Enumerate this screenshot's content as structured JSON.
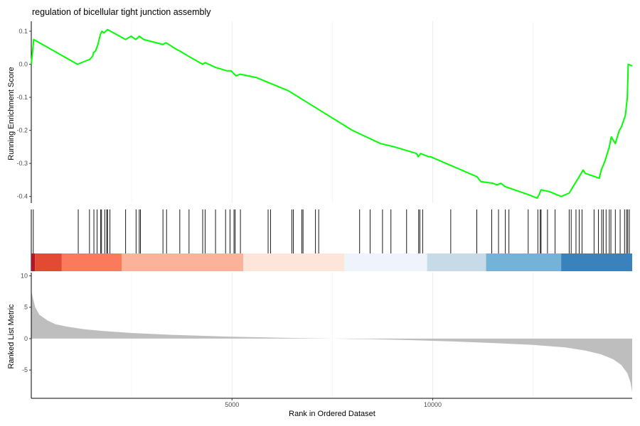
{
  "chart_data": {
    "type": "line",
    "title": "regulation of bicellular tight junction assembly",
    "xlabel": "Rank in Ordered Dataset",
    "xlim": [
      0,
      14970
    ],
    "x_ticks": [
      5000,
      10000
    ],
    "x_tick_labels": [
      "5000",
      "10000"
    ],
    "grid": true,
    "panels": [
      {
        "name": "running-enrichment",
        "ylabel": "Running Enrichment Score",
        "ylim": [
          -0.42,
          0.13
        ],
        "y_ticks": [
          0.1,
          0.0,
          -0.1,
          -0.2,
          -0.3,
          -0.4
        ],
        "y_tick_labels": [
          "0.1",
          "0.0",
          "-0.1",
          "-0.2",
          "-0.3",
          "-0.4"
        ],
        "series": [
          {
            "color": "#00ff00",
            "x": [
              0,
              60,
              1150,
              1460,
              1530,
              1550,
              1600,
              1660,
              1700,
              1720,
              1760,
              1810,
              1900,
              2350,
              2490,
              2600,
              2650,
              2690,
              2800,
              3280,
              3350,
              3400,
              3620,
              3700,
              3950,
              4270,
              4330,
              4600,
              4880,
              4980,
              5100,
              5200,
              5600,
              6400,
              7200,
              8000,
              8700,
              9050,
              9600,
              9640,
              9700,
              9900,
              9950,
              11100,
              11200,
              11500,
              11600,
              11700,
              11800,
              12400,
              12600,
              12650,
              12700,
              12900,
              13200,
              13400,
              13500,
              13650,
              13750,
              13800,
              14150,
              14200,
              14300,
              14350,
              14400,
              14450,
              14550,
              14650,
              14700,
              14800,
              14850,
              14870,
              14970
            ],
            "y": [
              0.0,
              0.075,
              0.0,
              0.015,
              0.025,
              0.035,
              0.04,
              0.06,
              0.08,
              0.09,
              0.1,
              0.095,
              0.105,
              0.075,
              0.085,
              0.075,
              0.08,
              0.085,
              0.075,
              0.06,
              0.065,
              0.062,
              0.045,
              0.04,
              0.022,
              0.0,
              0.005,
              -0.01,
              -0.02,
              -0.02,
              -0.035,
              -0.03,
              -0.04,
              -0.08,
              -0.14,
              -0.2,
              -0.24,
              -0.25,
              -0.27,
              -0.28,
              -0.27,
              -0.28,
              -0.28,
              -0.34,
              -0.355,
              -0.36,
              -0.365,
              -0.36,
              -0.37,
              -0.395,
              -0.405,
              -0.395,
              -0.38,
              -0.385,
              -0.4,
              -0.39,
              -0.37,
              -0.34,
              -0.32,
              -0.33,
              -0.345,
              -0.32,
              -0.29,
              -0.27,
              -0.25,
              -0.22,
              -0.24,
              -0.2,
              -0.19,
              -0.155,
              -0.1,
              0.0,
              -0.005
            ]
          }
        ]
      },
      {
        "name": "gene-hits",
        "hits": [
          50,
          1170,
          1450,
          1560,
          1640,
          1730,
          1750,
          1830,
          1880,
          1900,
          1960,
          2350,
          2610,
          2690,
          2720,
          3280,
          3370,
          3700,
          3930,
          4270,
          4330,
          4590,
          4840,
          4950,
          5050,
          5080,
          5210,
          5900,
          5960,
          6490,
          6530,
          6740,
          6770,
          7080,
          7160,
          8180,
          8440,
          8750,
          8960,
          9350,
          9650,
          9680,
          9750,
          10450,
          11100,
          11470,
          11640,
          11810,
          11900,
          12380,
          12620,
          12680,
          12700,
          12860,
          13050,
          13400,
          13450,
          13570,
          13650,
          13720,
          14020,
          14130,
          14210,
          14250,
          14320,
          14400,
          14440,
          14550,
          14670,
          14780,
          14830,
          14860,
          14900
        ],
        "color_bands": [
          {
            "start": 0,
            "end": 90,
            "color": "#b2182b"
          },
          {
            "start": 90,
            "end": 760,
            "color": "#e34a33"
          },
          {
            "start": 760,
            "end": 2250,
            "color": "#fb7a5d"
          },
          {
            "start": 2250,
            "end": 5280,
            "color": "#fbb29a"
          },
          {
            "start": 5280,
            "end": 7800,
            "color": "#fde5da"
          },
          {
            "start": 7800,
            "end": 9860,
            "color": "#eff3fb"
          },
          {
            "start": 9860,
            "end": 11330,
            "color": "#c6dbe7"
          },
          {
            "start": 11330,
            "end": 13200,
            "color": "#74b3d7"
          },
          {
            "start": 13200,
            "end": 14970,
            "color": "#3a82bc"
          }
        ]
      },
      {
        "name": "ranked-list",
        "ylabel": "Ranked List Metric",
        "ylim": [
          -9.5,
          10.5
        ],
        "y_ticks": [
          10,
          5,
          0,
          -5
        ],
        "y_tick_labels": [
          "10",
          "5",
          "0",
          "-5"
        ],
        "fill_color": "#bebebe",
        "x": [
          0,
          20,
          100,
          200,
          400,
          600,
          900,
          1300,
          1800,
          2500,
          3500,
          5000,
          6500,
          7500,
          8500,
          9500,
          10500,
          11500,
          12500,
          13300,
          13800,
          14200,
          14500,
          14700,
          14850,
          14930,
          14970
        ],
        "values": [
          7.5,
          7.0,
          5.0,
          3.8,
          2.9,
          2.3,
          1.9,
          1.5,
          1.2,
          0.9,
          0.6,
          0.3,
          0.1,
          0.0,
          -0.1,
          -0.25,
          -0.45,
          -0.7,
          -1.0,
          -1.4,
          -1.9,
          -2.5,
          -3.3,
          -4.2,
          -5.5,
          -7.0,
          -8.5
        ]
      }
    ]
  }
}
